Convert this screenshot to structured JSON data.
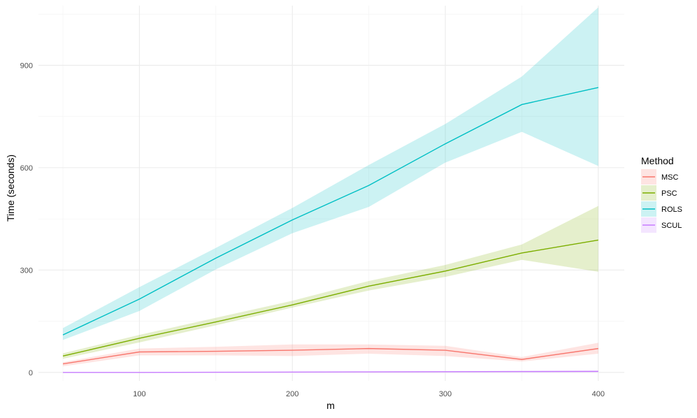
{
  "chart_data": {
    "type": "line",
    "title": "",
    "xlabel": "m",
    "ylabel": "Time (seconds)",
    "x": [
      50,
      100,
      150,
      200,
      250,
      300,
      350,
      400
    ],
    "xlim": [
      34,
      417
    ],
    "ylim": [
      -25,
      1075
    ],
    "x_ticks": [
      100,
      200,
      300,
      400
    ],
    "y_ticks": [
      0,
      300,
      600,
      900
    ],
    "x_tick_labels": [
      "100",
      "200",
      "300",
      "400"
    ],
    "y_tick_labels": [
      "0",
      "300",
      "600",
      "900"
    ],
    "grid": true,
    "legend": {
      "title": "Method",
      "position": "right"
    },
    "series": [
      {
        "name": "MSC",
        "color": "#F8766D",
        "values": [
          25,
          60,
          62,
          65,
          70,
          65,
          38,
          70
        ],
        "lower": [
          18,
          50,
          50,
          48,
          55,
          48,
          32,
          55
        ],
        "upper": [
          30,
          70,
          75,
          82,
          82,
          78,
          45,
          87
        ]
      },
      {
        "name": "PSC",
        "color": "#7CAE00",
        "values": [
          48,
          100,
          148,
          198,
          253,
          297,
          350,
          388
        ],
        "lower": [
          40,
          88,
          138,
          190,
          240,
          280,
          330,
          295
        ],
        "upper": [
          56,
          110,
          160,
          210,
          268,
          315,
          375,
          488
        ]
      },
      {
        "name": "ROLS",
        "color": "#00BFC4",
        "values": [
          110,
          215,
          335,
          447,
          548,
          670,
          785,
          835
        ],
        "lower": [
          95,
          180,
          302,
          408,
          485,
          615,
          705,
          605
        ],
        "upper": [
          130,
          250,
          365,
          482,
          608,
          728,
          867,
          1070
        ]
      },
      {
        "name": "SCUL",
        "color": "#C77CFF",
        "values": [
          0,
          0,
          0.5,
          1,
          1.5,
          2,
          2.5,
          3
        ],
        "lower": [
          0,
          0,
          0,
          0,
          0,
          0,
          0,
          0
        ],
        "upper": [
          1,
          1,
          2,
          2,
          3,
          4,
          5,
          6
        ]
      }
    ]
  }
}
